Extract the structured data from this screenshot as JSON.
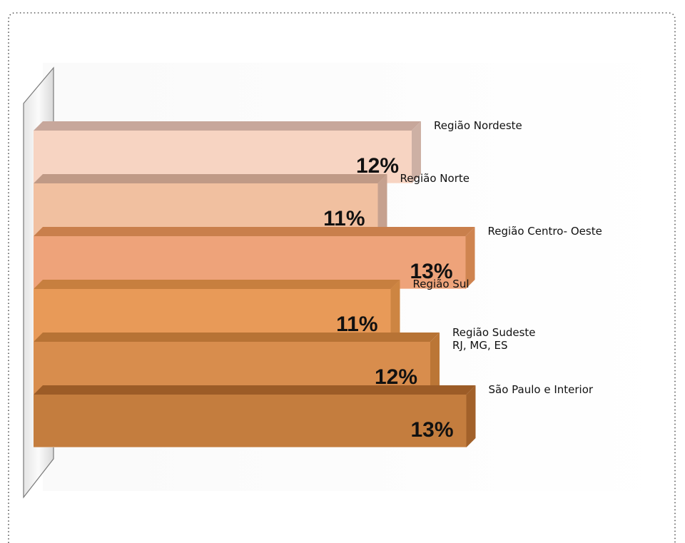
{
  "chart_data": {
    "type": "bar",
    "orientation": "horizontal",
    "categories": [
      [
        "Região  Nordeste"
      ],
      [
        "Região  Norte"
      ],
      [
        "Região  Centro- Oeste"
      ],
      [
        "Região  Sul"
      ],
      [
        "Região Sudeste",
        "RJ, MG, ES"
      ],
      [
        "São Paulo e Interior"
      ]
    ],
    "values": [
      12,
      11,
      13,
      11,
      12,
      13
    ],
    "value_labels": [
      "12%",
      "11%",
      "13%",
      "11%",
      "12%",
      "13%"
    ],
    "unit": "%",
    "colors": [
      "#f7d4c2",
      "#f1c0a0",
      "#eea37a",
      "#e89a58",
      "#d88d4d",
      "#c47d3e"
    ],
    "top_colors": [
      "#c7a79b",
      "#c09a86",
      "#c97f4c",
      "#c77f3f",
      "#b77335",
      "#9c5c27"
    ],
    "side_colors": [
      "#cdb0a4",
      "#c6a18f",
      "#cf8450",
      "#cd8542",
      "#bb7636",
      "#a2612a"
    ],
    "title": "",
    "xlabel": "",
    "ylabel": "",
    "grid": false,
    "legend": "none"
  }
}
